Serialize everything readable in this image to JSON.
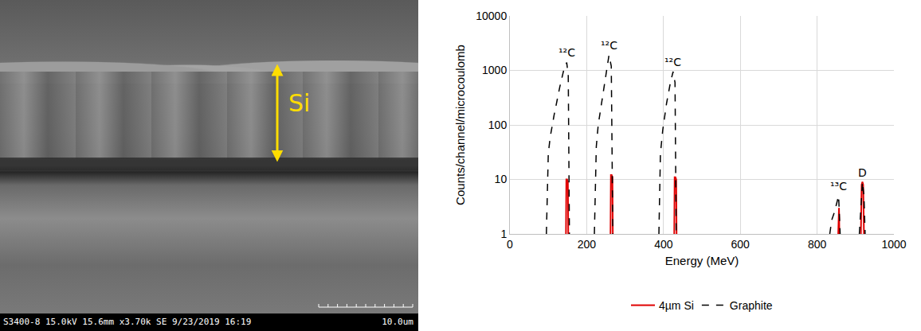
{
  "micrograph": {
    "label": "Si",
    "info": "S3400-8 15.0kV 15.6mm x3.70k SE 9/23/2019 16:19",
    "scale_bar": "10.0um"
  },
  "chart_data": {
    "type": "line",
    "x_label": "Energy (MeV)",
    "y_label": "Counts/channel/microcoulomb",
    "xlim": [
      0,
      1000
    ],
    "xticks": [
      0,
      200,
      400,
      600,
      800,
      1000
    ],
    "ylim": [
      1,
      10000
    ],
    "yticks": [
      1,
      10,
      100,
      1000,
      10000
    ],
    "log": "y",
    "grid": true,
    "legend": "bottom",
    "series": [
      {
        "name": "4µm Si",
        "color": "#e00000",
        "line_style": "solid",
        "x": [
          146,
          147,
          149,
          151,
          152,
          null,
          262,
          263,
          265,
          267,
          268,
          null,
          428,
          429,
          431,
          433,
          434,
          null,
          855,
          856,
          857,
          858,
          null,
          914,
          916,
          918,
          920,
          922
        ],
        "values": [
          1,
          10,
          10,
          9,
          1,
          null,
          1,
          12,
          12,
          11,
          1,
          null,
          1,
          11,
          11,
          10,
          1,
          null,
          1,
          3,
          3,
          1,
          null,
          1,
          8,
          9,
          8,
          1
        ]
      },
      {
        "name": "Graphite",
        "color": "#000000",
        "line_style": "dash",
        "x": [
          95,
          100,
          105,
          115,
          130,
          140,
          148,
          152,
          155,
          null,
          220,
          225,
          230,
          240,
          250,
          258,
          264,
          268,
          null,
          388,
          392,
          398,
          408,
          418,
          425,
          430,
          433,
          null,
          833,
          838,
          845,
          852,
          856,
          860,
          null,
          910,
          915,
          918,
          922,
          925
        ],
        "values": [
          1,
          30,
          60,
          150,
          500,
          1000,
          1400,
          800,
          1,
          null,
          1,
          40,
          100,
          300,
          900,
          1900,
          1200,
          1,
          null,
          1,
          30,
          80,
          250,
          600,
          950,
          600,
          1,
          null,
          1,
          1.8,
          2.5,
          4,
          5,
          1,
          null,
          1,
          5,
          9,
          5,
          1
        ]
      }
    ],
    "annotations": [
      {
        "text": "¹²C",
        "x": 148,
        "y": 1400
      },
      {
        "text": "¹²C",
        "x": 258,
        "y": 1900
      },
      {
        "text": "¹²C",
        "x": 425,
        "y": 950
      },
      {
        "text": "¹³C",
        "x": 855,
        "y": 5
      },
      {
        "text": "D",
        "x": 918,
        "y": 9
      }
    ]
  }
}
